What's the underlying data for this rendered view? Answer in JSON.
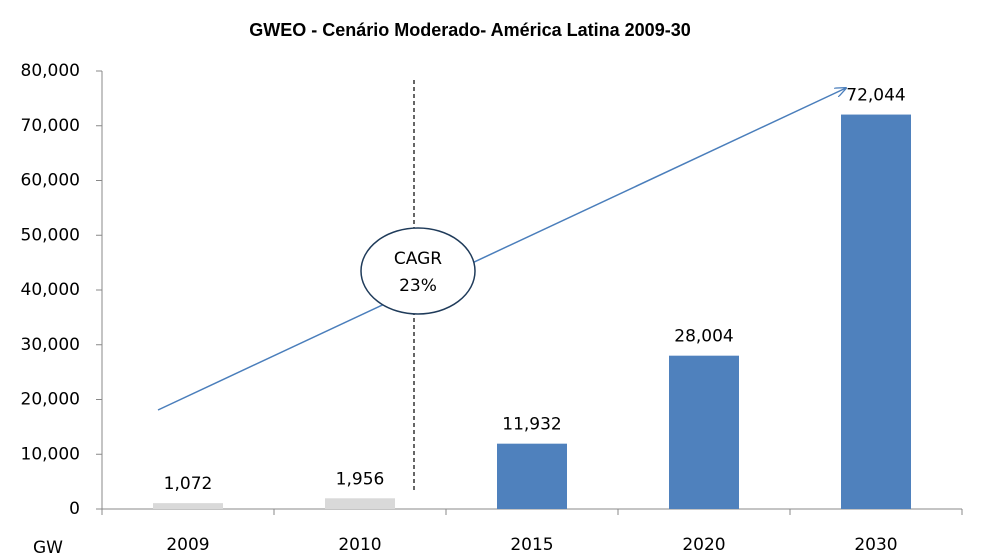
{
  "chart_data": {
    "type": "bar",
    "title": "GWEO - Cenário Moderado-  América Latina 2009-30",
    "y_label": "GW",
    "categories": [
      "2009",
      "2010",
      "2015",
      "2020",
      "2030"
    ],
    "values": [
      1072,
      1956,
      11932,
      28004,
      72044
    ],
    "value_labels": [
      "1,072",
      "1,956",
      "11,932",
      "28,004",
      "72,044"
    ],
    "colors": [
      "#d9d9d9",
      "#d9d9d9",
      "#4f81bd",
      "#4f81bd",
      "#4f81bd"
    ],
    "ylim": [
      0,
      80000
    ],
    "yticks": [
      0,
      {
        "value": 10000,
        "label": "10,000"
      },
      {
        "value": 20000,
        "label": "20,000"
      },
      {
        "value": 30000,
        "label": "30,000"
      },
      {
        "value": 40000,
        "label": "40,000"
      },
      {
        "value": 50000,
        "label": "50,000"
      },
      {
        "value": 60000,
        "label": "60,000"
      },
      {
        "value": 70000,
        "label": "70,000"
      },
      {
        "value": 80000,
        "label": "80,000"
      }
    ],
    "grid": false,
    "annotation": [
      "CAGR",
      "23%"
    ]
  }
}
